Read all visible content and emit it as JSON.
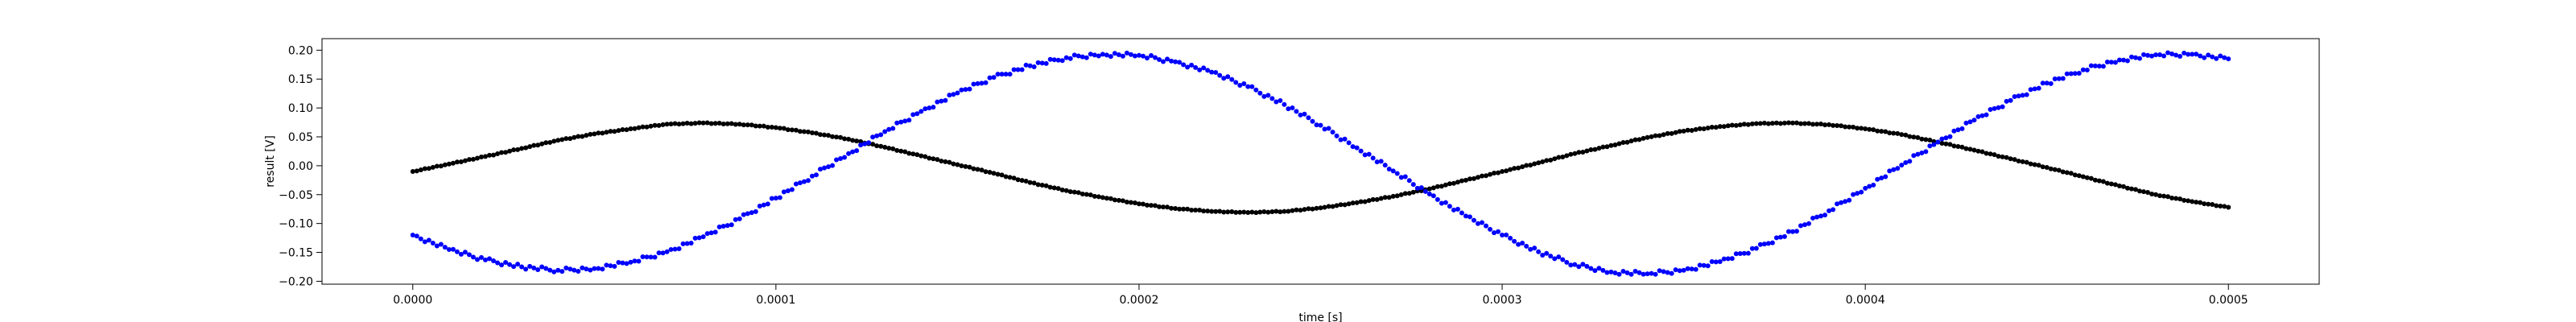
{
  "chart_data": {
    "type": "scatter",
    "title": "",
    "xlabel": "time [s]",
    "ylabel": "result [V]",
    "xlim": [
      -2.5e-05,
      0.000525
    ],
    "ylim": [
      -0.205,
      0.22
    ],
    "xticks": [
      0.0,
      0.0001,
      0.0002,
      0.0003,
      0.0004,
      0.0005
    ],
    "xtick_labels": [
      "0.0000",
      "0.0001",
      "0.0002",
      "0.0003",
      "0.0004",
      "0.0005"
    ],
    "yticks": [
      -0.2,
      -0.15,
      -0.1,
      -0.05,
      0.0,
      0.05,
      0.1,
      0.15,
      0.2
    ],
    "ytick_labels": [
      "−0.20",
      "−0.15",
      "−0.10",
      "−0.05",
      "0.00",
      "0.05",
      "0.10",
      "0.15",
      "0.20"
    ],
    "grid": false,
    "legend": "none",
    "series": [
      {
        "color": "#000000",
        "x": [
          0.0,
          1e-05,
          2e-05,
          3e-05,
          4e-05,
          5e-05,
          6e-05,
          7e-05,
          8e-05,
          9e-05,
          0.0001,
          0.00011,
          0.00012,
          0.00013,
          0.00014,
          0.00015,
          0.00016,
          0.00017,
          0.00018,
          0.00019,
          0.0002,
          0.00021,
          0.00022,
          0.00023,
          0.00024,
          0.00025,
          0.00026,
          0.00027,
          0.00028,
          0.00029,
          0.0003,
          0.00031,
          0.00032,
          0.00033,
          0.00034,
          0.00035,
          0.00036,
          0.00037,
          0.00038,
          0.00039,
          0.0004,
          0.00041,
          0.00042,
          0.00043,
          0.00044,
          0.00045,
          0.00046,
          0.00047,
          0.00048,
          0.00049,
          0.0005
        ],
        "y": [
          -0.01,
          0.003,
          0.016,
          0.03,
          0.044,
          0.055,
          0.064,
          0.072,
          0.074,
          0.072,
          0.066,
          0.057,
          0.046,
          0.032,
          0.017,
          0.002,
          -0.013,
          -0.029,
          -0.043,
          -0.055,
          -0.066,
          -0.074,
          -0.079,
          -0.081,
          -0.079,
          -0.073,
          -0.064,
          -0.053,
          -0.04,
          -0.025,
          -0.01,
          0.005,
          0.021,
          0.035,
          0.049,
          0.06,
          0.068,
          0.073,
          0.074,
          0.071,
          0.064,
          0.054,
          0.041,
          0.027,
          0.012,
          -0.003,
          -0.019,
          -0.035,
          -0.05,
          -0.062,
          -0.072
        ]
      },
      {
        "color": "#0000ff",
        "x": [
          0.0,
          1e-05,
          2e-05,
          3e-05,
          4e-05,
          5e-05,
          6e-05,
          7e-05,
          8e-05,
          9e-05,
          0.0001,
          0.00011,
          0.00012,
          0.00013,
          0.00014,
          0.00015,
          0.00016,
          0.00017,
          0.00018,
          0.00019,
          0.0002,
          0.00021,
          0.00022,
          0.00023,
          0.00024,
          0.00025,
          0.00026,
          0.00027,
          0.00028,
          0.00029,
          0.0003,
          0.00031,
          0.00032,
          0.00033,
          0.00034,
          0.00035,
          0.00036,
          0.00037,
          0.00038,
          0.00039,
          0.0004,
          0.00041,
          0.00042,
          0.00043,
          0.00044,
          0.00045,
          0.00046,
          0.00047,
          0.00048,
          0.00049,
          0.0005
        ],
        "y": [
          -0.12,
          -0.145,
          -0.163,
          -0.175,
          -0.181,
          -0.178,
          -0.167,
          -0.149,
          -0.123,
          -0.092,
          -0.056,
          -0.018,
          0.021,
          0.059,
          0.094,
          0.126,
          0.153,
          0.173,
          0.187,
          0.193,
          0.191,
          0.18,
          0.162,
          0.137,
          0.106,
          0.07,
          0.031,
          -0.009,
          -0.049,
          -0.087,
          -0.12,
          -0.149,
          -0.171,
          -0.184,
          -0.187,
          -0.181,
          -0.166,
          -0.143,
          -0.114,
          -0.078,
          -0.039,
          0.001,
          0.041,
          0.079,
          0.113,
          0.143,
          0.166,
          0.183,
          0.192,
          0.193,
          0.185
        ]
      }
    ]
  }
}
